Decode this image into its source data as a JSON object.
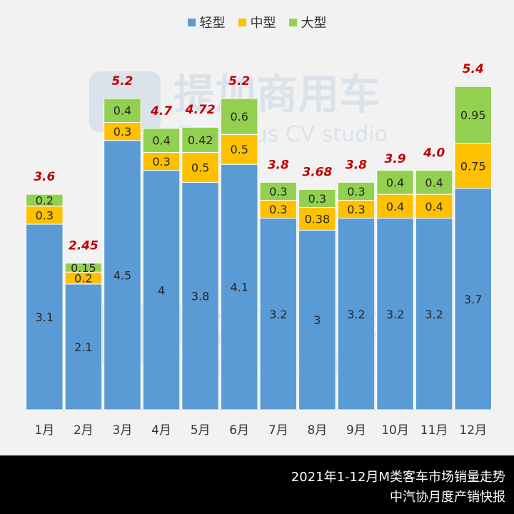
{
  "chart_data": {
    "type": "bar",
    "stacked": true,
    "categories": [
      "1月",
      "2月",
      "3月",
      "4月",
      "5月",
      "6月",
      "7月",
      "8月",
      "9月",
      "10月",
      "11月",
      "12月"
    ],
    "series": [
      {
        "name": "轻型",
        "color": "#5b9bd5",
        "values": [
          3.1,
          2.1,
          4.5,
          4,
          3.8,
          4.1,
          3.2,
          3,
          3.2,
          3.2,
          3.2,
          3.7
        ]
      },
      {
        "name": "中型",
        "color": "#ffc000",
        "values": [
          0.3,
          0.2,
          0.3,
          0.3,
          0.5,
          0.5,
          0.3,
          0.38,
          0.3,
          0.4,
          0.4,
          0.75
        ]
      },
      {
        "name": "大型",
        "color": "#92d050",
        "values": [
          0.2,
          0.15,
          0.4,
          0.4,
          0.42,
          0.6,
          0.3,
          0.3,
          0.3,
          0.4,
          0.4,
          0.95
        ]
      }
    ],
    "series_labels": [
      [
        "3.1",
        "2.1",
        "4.5",
        "4",
        "3.8",
        "4.1",
        "3.2",
        "3",
        "3.2",
        "3.2",
        "3.2",
        "3.7"
      ],
      [
        "0.3",
        "0.2",
        "0.3",
        "0.3",
        "0.5",
        "0.5",
        "0.3",
        "0.38",
        "0.3",
        "0.4",
        "0.4",
        "0.75"
      ],
      [
        "0.2",
        "0.15",
        "0.4",
        "0.4",
        "0.42",
        "0.6",
        "0.3",
        "0.3",
        "0.3",
        "0.4",
        "0.4",
        "0.95"
      ]
    ],
    "totals": [
      3.6,
      2.45,
      5.2,
      4.7,
      4.72,
      5.2,
      3.8,
      3.68,
      3.8,
      3.9,
      4.0,
      5.4
    ],
    "total_labels": [
      "3.6",
      "2.45",
      "5.2",
      "4.7",
      "4.72",
      "5.2",
      "3.8",
      "3.68",
      "3.8",
      "3.9",
      "4.0",
      "5.4"
    ],
    "total_label_color": "#c00000",
    "ylim": [
      0,
      5.45
    ],
    "grid": false,
    "legend_position": "top-center"
  },
  "watermark": {
    "text_cn": "提加商用车",
    "text_en": "TruckPlus CV studio"
  },
  "footer": {
    "line1": "2021年1-12月M类客车市场销量走势",
    "line2": "中汽协月度产销快报"
  }
}
